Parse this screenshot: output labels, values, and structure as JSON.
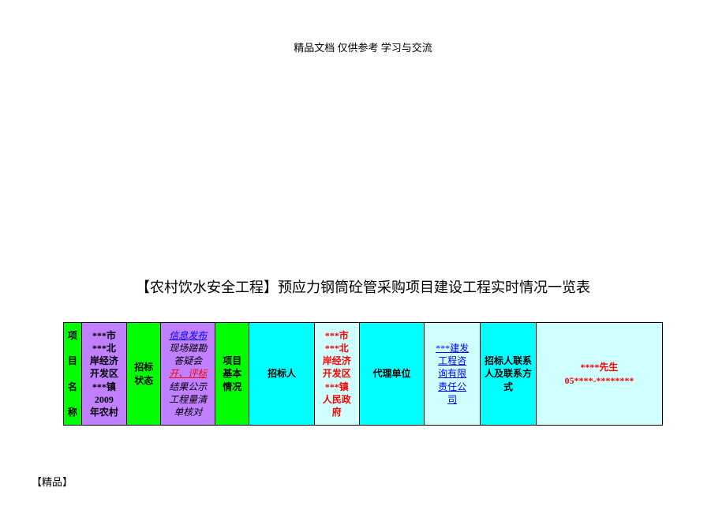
{
  "header_note": "精品文档 仅供参考 学习与交流",
  "title": "【农村饮水安全工程】预应力钢筒砼管采购项目建设工程实时情况一览表",
  "footer_note": "【精品】",
  "colors": {
    "green": "#00ff00",
    "violet": "#c080ff",
    "cyan": "#00ffff",
    "pale_cyan": "#d0ffff",
    "white": "#ffffff",
    "red_text": "#ff0000",
    "blue_text": "#0000ff",
    "black": "#000000"
  },
  "cells": {
    "c0": {
      "lines": [
        "项",
        "",
        "目",
        "",
        "名",
        "",
        "称"
      ],
      "bg": "green",
      "bold": true
    },
    "c1": {
      "lines": [
        "***市",
        "***北",
        "岸经济",
        "开发区",
        "***镇",
        "2009",
        "年农村"
      ],
      "bg": "violet",
      "bold": true
    },
    "c2": {
      "lines": [
        "招标",
        "状态"
      ],
      "bg": "green",
      "bold": true
    },
    "c3_parts": [
      {
        "text": "信息发布",
        "color": "blue_text",
        "italic": true,
        "underline": true
      },
      {
        "text": "现场踏勘",
        "color": "black",
        "italic": true
      },
      {
        "text": "答疑会",
        "color": "black",
        "italic": true
      },
      {
        "text": "开、评标",
        "color": "red_text",
        "italic": true,
        "underline": true
      },
      {
        "text": "结果公示",
        "color": "black",
        "italic": true
      },
      {
        "text": "工程量清",
        "color": "black",
        "italic": true
      },
      {
        "text": "单核对",
        "color": "black",
        "italic": true
      }
    ],
    "c3_bg": "violet",
    "c4": {
      "lines": [
        "项目",
        "基本",
        "情况"
      ],
      "bg": "green",
      "bold": true
    },
    "c5": {
      "lines": [
        "招标人"
      ],
      "bg": "cyan",
      "bold": true
    },
    "c6_parts": [
      {
        "text": "***市",
        "color": "red_text",
        "bold": true
      },
      {
        "text": "***北",
        "color": "red_text",
        "bold": true
      },
      {
        "text": "岸经济",
        "color": "red_text",
        "bold": true
      },
      {
        "text": "开发区",
        "color": "red_text",
        "bold": true
      },
      {
        "text": "***镇",
        "color": "red_text",
        "bold": true
      },
      {
        "text": "人民政",
        "color": "red_text",
        "bold": true
      },
      {
        "text": "府",
        "color": "red_text",
        "bold": true
      }
    ],
    "c6_bg": "pale_cyan",
    "c7": {
      "lines": [
        "代理单位"
      ],
      "bg": "cyan",
      "bold": true
    },
    "c8_parts": [
      {
        "text": "***建发",
        "color": "blue_text",
        "underline": true
      },
      {
        "text": "工程咨",
        "color": "blue_text",
        "underline": true
      },
      {
        "text": "询有限",
        "color": "blue_text",
        "underline": true
      },
      {
        "text": "责任公",
        "color": "blue_text",
        "underline": true
      },
      {
        "text": "司 ",
        "color": "blue_text",
        "underline": true
      }
    ],
    "c8_bg": "pale_cyan",
    "c9": {
      "lines": [
        "招标人联系",
        "人及联系方",
        "式"
      ],
      "bg": "cyan",
      "bold": true
    },
    "c10_parts": [
      {
        "text": "****先生",
        "color": "red_text",
        "bold": true
      },
      {
        "text": "05****-********",
        "color": "red_text",
        "bold": true
      }
    ],
    "c10_bg": "pale_cyan"
  }
}
